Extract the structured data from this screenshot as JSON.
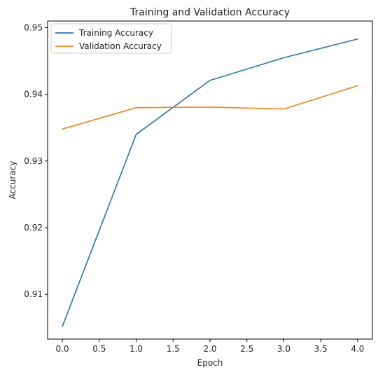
{
  "chart_data": {
    "type": "line",
    "title": "Training and Validation Accuracy",
    "xlabel": "Epoch",
    "ylabel": "Accuracy",
    "x": [
      0,
      1,
      2,
      3,
      4
    ],
    "xlim": [
      -0.2,
      4.2
    ],
    "ylim": [
      0.9033,
      0.951
    ],
    "xticks": [
      "0.0",
      "0.5",
      "1.0",
      "1.5",
      "2.0",
      "2.5",
      "3.0",
      "3.5",
      "4.0"
    ],
    "xtick_values": [
      0,
      0.5,
      1,
      1.5,
      2,
      2.5,
      3,
      3.5,
      4
    ],
    "yticks": [
      "0.91",
      "0.92",
      "0.93",
      "0.94",
      "0.95"
    ],
    "ytick_values": [
      0.91,
      0.92,
      0.93,
      0.94,
      0.95
    ],
    "grid": false,
    "legend_position": "upper-left",
    "series": [
      {
        "name": "Training Accuracy",
        "color": "#1f77b4",
        "values": [
          0.9052,
          0.934,
          0.9421,
          0.9455,
          0.9483
        ]
      },
      {
        "name": "Validation Accuracy",
        "color": "#ff7f0e",
        "values": [
          0.9348,
          0.938,
          0.9381,
          0.9378,
          0.9413
        ]
      }
    ]
  }
}
